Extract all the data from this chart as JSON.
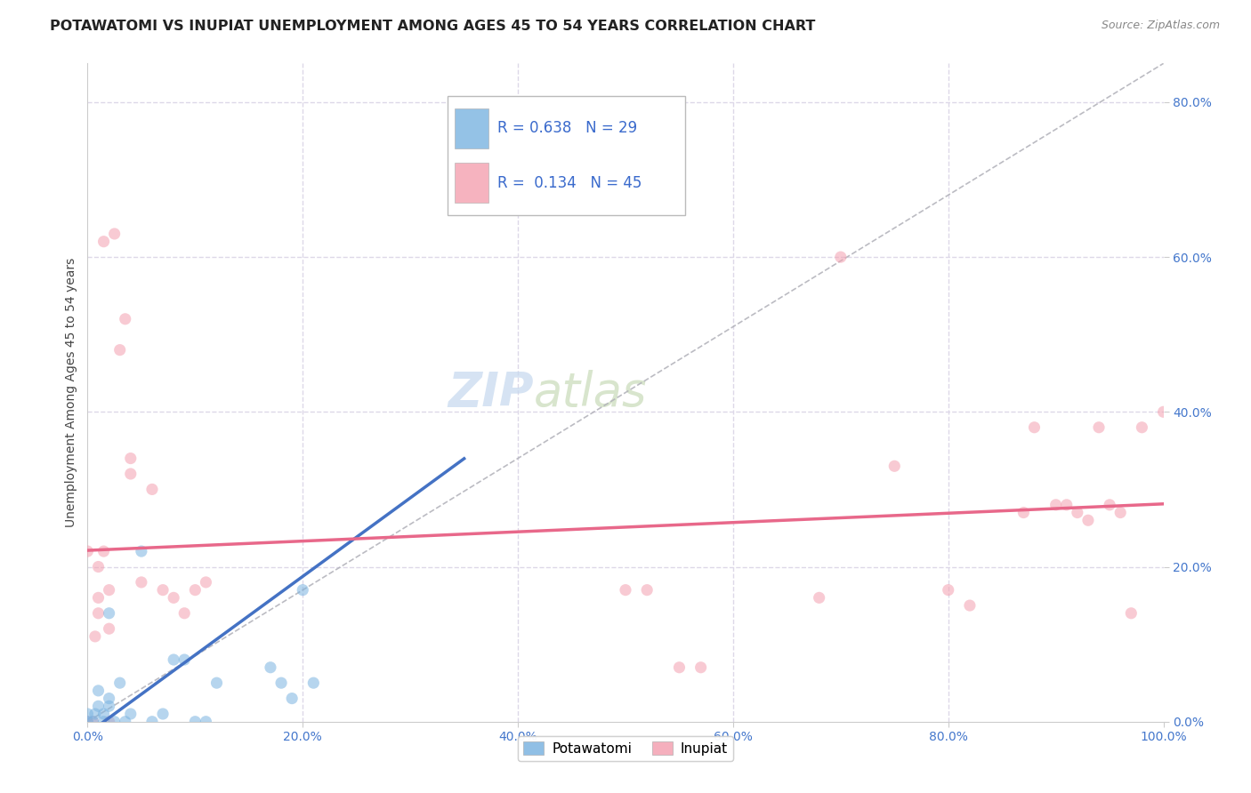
{
  "title": "POTAWATOMI VS INUPIAT UNEMPLOYMENT AMONG AGES 45 TO 54 YEARS CORRELATION CHART",
  "source": "Source: ZipAtlas.com",
  "ylabel": "Unemployment Among Ages 45 to 54 years",
  "xlim": [
    0.0,
    1.0
  ],
  "ylim": [
    0.0,
    0.85
  ],
  "xticks": [
    0.0,
    0.2,
    0.4,
    0.6,
    0.8,
    1.0
  ],
  "xtick_labels": [
    "0.0%",
    "20.0%",
    "40.0%",
    "60.0%",
    "80.0%",
    "100.0%"
  ],
  "yticks": [
    0.0,
    0.2,
    0.4,
    0.6,
    0.8
  ],
  "ytick_labels": [
    "0.0%",
    "20.0%",
    "40.0%",
    "60.0%",
    "80.0%"
  ],
  "watermark_part1": "ZIP",
  "watermark_part2": "atlas",
  "potawatomi_x": [
    0.0,
    0.0,
    0.005,
    0.007,
    0.01,
    0.01,
    0.015,
    0.015,
    0.02,
    0.02,
    0.02,
    0.025,
    0.03,
    0.035,
    0.04,
    0.05,
    0.06,
    0.07,
    0.08,
    0.09,
    0.1,
    0.11,
    0.12,
    0.17,
    0.18,
    0.19,
    0.2,
    0.21,
    0.35
  ],
  "potawatomi_y": [
    0.0,
    0.01,
    0.0,
    0.01,
    0.02,
    0.04,
    0.0,
    0.01,
    0.02,
    0.03,
    0.14,
    0.0,
    0.05,
    0.0,
    0.01,
    0.22,
    0.0,
    0.01,
    0.08,
    0.08,
    0.0,
    0.0,
    0.05,
    0.07,
    0.05,
    0.03,
    0.17,
    0.05,
    0.67
  ],
  "inupiat_x": [
    0.0,
    0.0,
    0.005,
    0.007,
    0.01,
    0.01,
    0.01,
    0.015,
    0.015,
    0.02,
    0.02,
    0.02,
    0.025,
    0.03,
    0.035,
    0.04,
    0.04,
    0.05,
    0.06,
    0.07,
    0.08,
    0.09,
    0.1,
    0.11,
    0.5,
    0.52,
    0.55,
    0.57,
    0.68,
    0.7,
    0.75,
    0.8,
    0.82,
    0.87,
    0.88,
    0.9,
    0.91,
    0.92,
    0.93,
    0.94,
    0.95,
    0.96,
    0.97,
    0.98,
    1.0
  ],
  "inupiat_y": [
    0.0,
    0.22,
    0.0,
    0.11,
    0.14,
    0.16,
    0.2,
    0.22,
    0.62,
    0.0,
    0.12,
    0.17,
    0.63,
    0.48,
    0.52,
    0.32,
    0.34,
    0.18,
    0.3,
    0.17,
    0.16,
    0.14,
    0.17,
    0.18,
    0.17,
    0.17,
    0.07,
    0.07,
    0.16,
    0.6,
    0.33,
    0.17,
    0.15,
    0.27,
    0.38,
    0.28,
    0.28,
    0.27,
    0.26,
    0.38,
    0.28,
    0.27,
    0.14,
    0.38,
    0.4
  ],
  "potawatomi_color": "#7ab3e0",
  "inupiat_color": "#f4a0b0",
  "potawatomi_line_color": "#4472c4",
  "inupiat_line_color": "#e8688a",
  "diagonal_color": "#b0b0b8",
  "background_color": "#ffffff",
  "grid_color": "#ddd8e8",
  "marker_size": 90,
  "marker_alpha": 0.55,
  "title_fontsize": 11.5,
  "axis_label_fontsize": 10,
  "tick_fontsize": 10,
  "tick_color": "#4477cc",
  "legend_fontsize": 12,
  "source_fontsize": 9,
  "watermark_fontsize1": 38,
  "watermark_fontsize2": 38
}
